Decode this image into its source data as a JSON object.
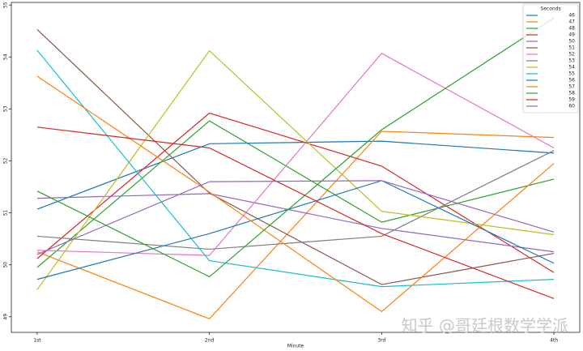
{
  "chart_data": {
    "type": "line",
    "x_label": "Minute",
    "legend_title": "Seconds",
    "legend_position": "upper right",
    "watermark": "知乎 @哥廷根数学学派",
    "categories": [
      "1st",
      "2nd",
      "3rd",
      "4th"
    ],
    "ylim": [
      48.7,
      55.05
    ],
    "yticks": [
      49,
      50,
      51,
      52,
      53,
      54,
      55
    ],
    "series": [
      {
        "name": "46",
        "color": "#1f77b4",
        "values": [
          51.07,
          52.33,
          52.38,
          52.15
        ]
      },
      {
        "name": "47",
        "color": "#ff7f0e",
        "values": [
          50.25,
          48.96,
          52.57,
          52.45
        ]
      },
      {
        "name": "48",
        "color": "#2ca02c",
        "values": [
          49.95,
          52.77,
          50.82,
          51.65
        ]
      },
      {
        "name": "49",
        "color": "#d62728",
        "values": [
          50.12,
          52.92,
          51.9,
          49.85
        ]
      },
      {
        "name": "50",
        "color": "#9467bd",
        "values": [
          51.28,
          51.37,
          50.7,
          50.25
        ]
      },
      {
        "name": "51",
        "color": "#8c564b",
        "values": [
          54.53,
          51.38,
          49.62,
          50.22
        ]
      },
      {
        "name": "52",
        "color": "#e377c2",
        "values": [
          50.28,
          50.18,
          54.07,
          52.25
        ]
      },
      {
        "name": "53",
        "color": "#7f7f7f",
        "values": [
          50.55,
          50.3,
          50.55,
          52.2
        ]
      },
      {
        "name": "54",
        "color": "#bcbd22",
        "values": [
          49.52,
          54.12,
          51.03,
          50.58
        ]
      },
      {
        "name": "55",
        "color": "#17becf",
        "values": [
          54.13,
          50.08,
          49.58,
          49.72
        ]
      },
      {
        "name": "56",
        "color": "#1f77b4",
        "values": [
          49.72,
          50.6,
          51.62,
          50.03
        ]
      },
      {
        "name": "57",
        "color": "#ff7f0e",
        "values": [
          53.63,
          51.4,
          49.1,
          51.95
        ]
      },
      {
        "name": "58",
        "color": "#2ca02c",
        "values": [
          51.42,
          49.77,
          52.6,
          54.75
        ]
      },
      {
        "name": "59",
        "color": "#d62728",
        "values": [
          52.65,
          52.25,
          50.6,
          49.35
        ]
      },
      {
        "name": "60",
        "color": "#9467bd",
        "values": [
          50.2,
          51.6,
          51.62,
          50.63
        ]
      }
    ]
  }
}
